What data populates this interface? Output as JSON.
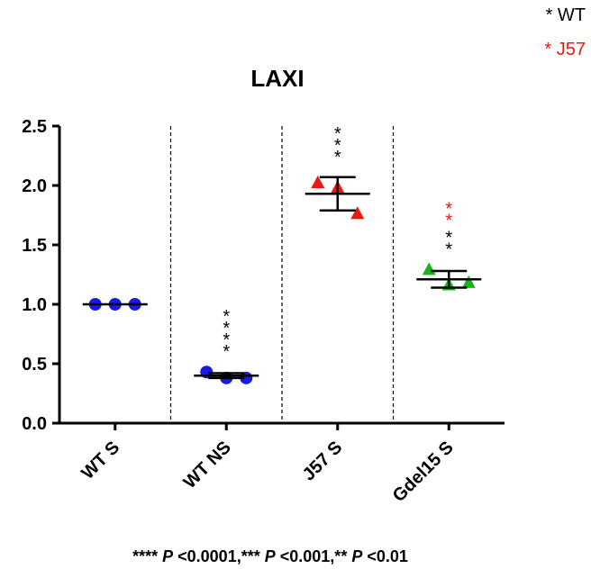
{
  "legend": [
    {
      "text": "* WT",
      "color": "#000000"
    },
    {
      "text": "* J57",
      "color": "#e8190f"
    }
  ],
  "footnote": {
    "parts": [
      {
        "text": "**** ",
        "italic": false
      },
      {
        "text": "P",
        "italic": true
      },
      {
        "text": " <0.0001,*** ",
        "italic": false
      },
      {
        "text": "P",
        "italic": true
      },
      {
        "text": " <0.001,** ",
        "italic": false
      },
      {
        "text": "P",
        "italic": true
      },
      {
        "text": " <0.01",
        "italic": false
      }
    ]
  },
  "chart_data": {
    "type": "scatter",
    "title": "LAXI",
    "xlabel": "",
    "ylabel": "",
    "ylim": [
      0,
      2.5
    ],
    "yticks": [
      "0.0",
      "0.5",
      "1.0",
      "1.5",
      "2.0",
      "2.5"
    ],
    "categories": [
      "WT S",
      "WT NS",
      "J57 S",
      "Gdel15 S"
    ],
    "group_separators": "dashed vertical lines between groups",
    "series": [
      {
        "category": "WT S",
        "marker": "circle",
        "color": "#1a1ae6",
        "points": [
          1.0,
          1.0,
          1.0
        ],
        "mean": 1.0,
        "error": 0.0,
        "annotations": []
      },
      {
        "category": "WT NS",
        "marker": "circle",
        "color": "#1a1ae6",
        "points": [
          0.43,
          0.38,
          0.38
        ],
        "mean": 0.4,
        "error": 0.02,
        "annotations": [
          {
            "text": "****",
            "color": "#000000"
          }
        ]
      },
      {
        "category": "J57 S",
        "marker": "triangle",
        "color": "#e8190f",
        "points": [
          2.02,
          1.98,
          1.76
        ],
        "mean": 1.93,
        "error": 0.14,
        "annotations": [
          {
            "text": "***",
            "color": "#000000"
          }
        ]
      },
      {
        "category": "Gdel15 S",
        "marker": "triangle",
        "color": "#18b418",
        "points": [
          1.29,
          1.16,
          1.18
        ],
        "mean": 1.21,
        "error": 0.07,
        "annotations": [
          {
            "text": "**",
            "color": "#000000"
          },
          {
            "text": "**",
            "color": "#e8190f"
          }
        ]
      }
    ]
  }
}
